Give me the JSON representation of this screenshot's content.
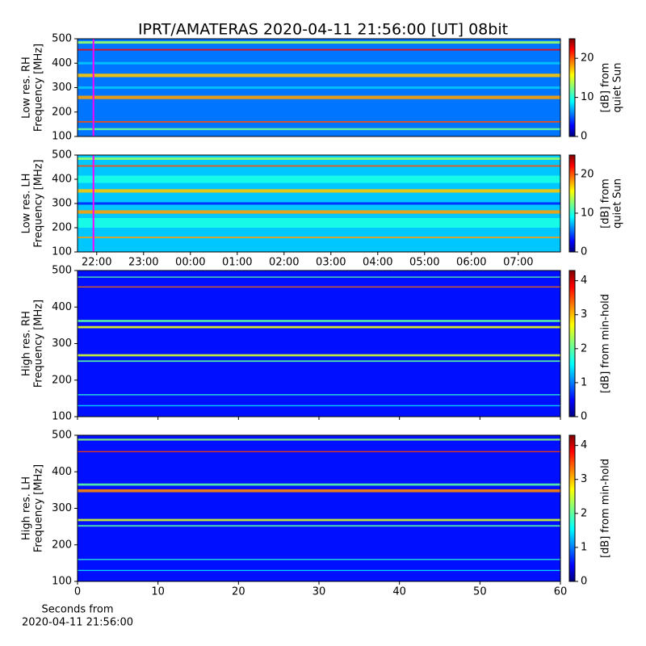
{
  "chart_data": [
    {
      "type": "heatmap",
      "title": "IPRT/AMATERAS 2020-04-11 21:56:00 [UT]   08bit",
      "ylabel": [
        "Low res. RH",
        "Frequency [MHz]"
      ],
      "xlim": [
        21.59,
        31.9
      ],
      "marker_x": 21.93,
      "ylim": [
        100,
        500
      ],
      "yticks": [
        100,
        200,
        300,
        400,
        500
      ],
      "colorbar": {
        "clim": [
          0,
          25
        ],
        "ticks": [
          0,
          10,
          20
        ],
        "label": [
          "[dB] from",
          "quiet Sun"
        ]
      },
      "background": 6,
      "bands": [
        {
          "freq": 130,
          "width": 8,
          "level": 12
        },
        {
          "freq": 160,
          "width": 6,
          "level": 20
        },
        {
          "freq": 260,
          "width": 14,
          "level": 18
        },
        {
          "freq": 300,
          "width": 10,
          "level": 8
        },
        {
          "freq": 350,
          "width": 14,
          "level": 17
        },
        {
          "freq": 400,
          "width": 10,
          "level": 8
        },
        {
          "freq": 455,
          "width": 6,
          "level": 22
        },
        {
          "freq": 485,
          "width": 10,
          "level": 13
        }
      ]
    },
    {
      "type": "heatmap",
      "ylabel": [
        "Low res. LH",
        "Frequency [MHz]"
      ],
      "xlim": [
        21.59,
        31.9
      ],
      "marker_x": 21.93,
      "xticks": [
        {
          "value": 22,
          "label": "22:00"
        },
        {
          "value": 23,
          "label": "23:00"
        },
        {
          "value": 24,
          "label": "00:00"
        },
        {
          "value": 25,
          "label": "01:00"
        },
        {
          "value": 26,
          "label": "02:00"
        },
        {
          "value": 27,
          "label": "03:00"
        },
        {
          "value": 28,
          "label": "04:00"
        },
        {
          "value": 29,
          "label": "05:00"
        },
        {
          "value": 30,
          "label": "06:00"
        },
        {
          "value": 31,
          "label": "07:00"
        }
      ],
      "ylim": [
        100,
        500
      ],
      "yticks": [
        100,
        200,
        300,
        400,
        500
      ],
      "colorbar": {
        "clim": [
          0,
          25
        ],
        "ticks": [
          0,
          10,
          20
        ],
        "label": [
          "[dB] from",
          "quiet Sun"
        ]
      },
      "background": 8,
      "bands": [
        {
          "freq": 160,
          "width": 6,
          "level": 18
        },
        {
          "freq": 220,
          "width": 40,
          "level": 10
        },
        {
          "freq": 265,
          "width": 14,
          "level": 18
        },
        {
          "freq": 300,
          "width": 10,
          "level": 4
        },
        {
          "freq": 352,
          "width": 14,
          "level": 17
        },
        {
          "freq": 400,
          "width": 30,
          "level": 10
        },
        {
          "freq": 455,
          "width": 6,
          "level": 20
        },
        {
          "freq": 485,
          "width": 10,
          "level": 13
        }
      ]
    },
    {
      "type": "heatmap",
      "ylabel": [
        "High res. RH",
        "Frequency [MHz]"
      ],
      "xlim": [
        0,
        60
      ],
      "xticks_unlabeled": [
        0,
        10,
        20,
        30,
        40,
        50,
        60
      ],
      "ylim": [
        100,
        500
      ],
      "yticks": [
        100,
        200,
        300,
        400,
        500
      ],
      "colorbar": {
        "clim": [
          0,
          4.3
        ],
        "ticks": [
          0,
          1,
          2,
          3,
          4
        ],
        "label": [
          "[dB] from min-hold"
        ]
      },
      "background": 0.6,
      "bands": [
        {
          "freq": 130,
          "width": 3,
          "level": 1.5
        },
        {
          "freq": 160,
          "width": 3,
          "level": 1.8
        },
        {
          "freq": 252,
          "width": 4,
          "level": 2
        },
        {
          "freq": 268,
          "width": 6,
          "level": 2.5
        },
        {
          "freq": 345,
          "width": 6,
          "level": 2.6
        },
        {
          "freq": 362,
          "width": 6,
          "level": 2
        },
        {
          "freq": 455,
          "width": 3,
          "level": 3.3
        },
        {
          "freq": 482,
          "width": 3,
          "level": 2
        }
      ]
    },
    {
      "type": "heatmap",
      "ylabel": [
        "High res. LH",
        "Frequency [MHz]"
      ],
      "xlim": [
        0,
        60
      ],
      "xticks": [
        0,
        10,
        20,
        30,
        40,
        50,
        60
      ],
      "xlabel": [
        "Seconds from",
        "2020-04-11 21:56:00"
      ],
      "ylim": [
        100,
        500
      ],
      "yticks": [
        100,
        200,
        300,
        400,
        500
      ],
      "colorbar": {
        "clim": [
          0,
          4.3
        ],
        "ticks": [
          0,
          1,
          2,
          3,
          4
        ],
        "label": [
          "[dB] from min-hold"
        ]
      },
      "background": 0.6,
      "bands": [
        {
          "freq": 130,
          "width": 3,
          "level": 1.5
        },
        {
          "freq": 160,
          "width": 3,
          "level": 1.8
        },
        {
          "freq": 252,
          "width": 4,
          "level": 2
        },
        {
          "freq": 268,
          "width": 6,
          "level": 2.5
        },
        {
          "freq": 348,
          "width": 8,
          "level": 3.2
        },
        {
          "freq": 365,
          "width": 6,
          "level": 2
        },
        {
          "freq": 455,
          "width": 3,
          "level": 3.5
        },
        {
          "freq": 488,
          "width": 5,
          "level": 2.2
        }
      ]
    }
  ]
}
